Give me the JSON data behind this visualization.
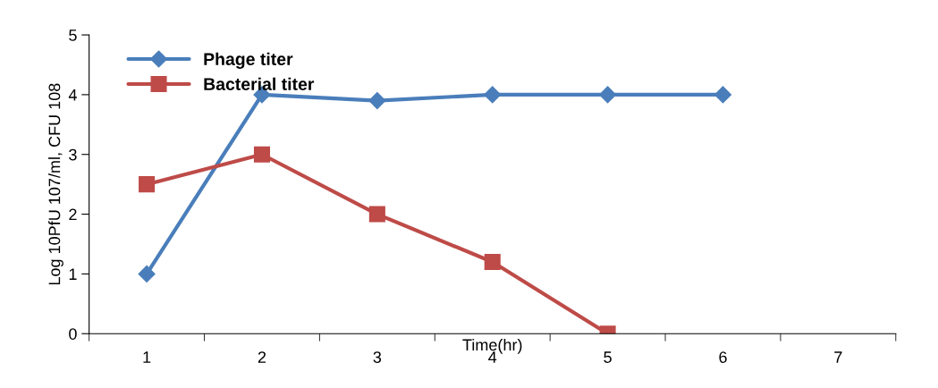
{
  "chart_data": {
    "type": "line",
    "xlabel": "Time(hr)",
    "ylabel": "Log 10PfU 107/ml, CFU 108",
    "categories": [
      "1",
      "2",
      "3",
      "4",
      "5",
      "6",
      "7"
    ],
    "series": [
      {
        "name": "Phage titer",
        "color": "#4a7ebb",
        "values": [
          1,
          4,
          3.9,
          4,
          4,
          4,
          null
        ],
        "marker": "diamond"
      },
      {
        "name": "Bacterial titer",
        "color": "#be4b48",
        "values": [
          2.5,
          3,
          2,
          1.2,
          0,
          null,
          null
        ],
        "marker": "square"
      }
    ],
    "ylim": [
      0,
      5
    ],
    "yticks": [
      0,
      1,
      2,
      3,
      4,
      5
    ],
    "grid": false,
    "legend": "top left",
    "line_style": "solid"
  }
}
